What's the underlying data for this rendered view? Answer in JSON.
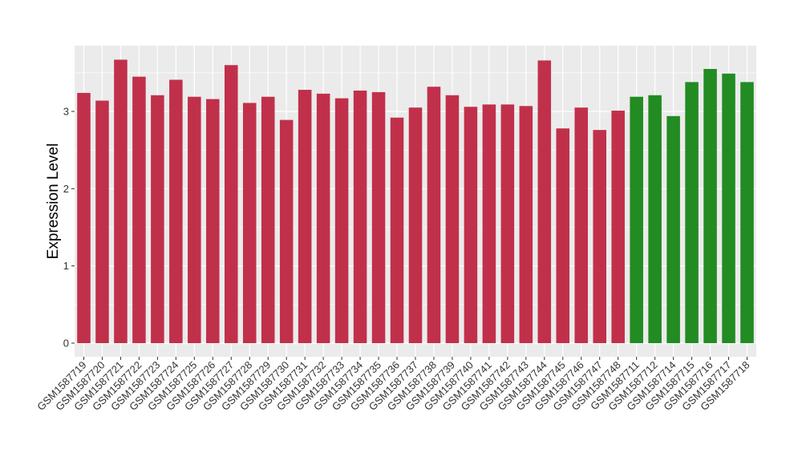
{
  "chart_data": {
    "type": "bar",
    "title": "",
    "xlabel": "",
    "ylabel": "Expression Level",
    "ylim": [
      0,
      3.8
    ],
    "yticks": [
      0,
      1,
      2,
      3
    ],
    "ytick_labels": [
      "0",
      "1",
      "2",
      "3"
    ],
    "grid": true,
    "categories": [
      "GSM1587719",
      "GSM1587720",
      "GSM1587721",
      "GSM1587722",
      "GSM1587723",
      "GSM1587724",
      "GSM1587725",
      "GSM1587726",
      "GSM1587727",
      "GSM1587728",
      "GSM1587729",
      "GSM1587730",
      "GSM1587731",
      "GSM1587732",
      "GSM1587733",
      "GSM1587734",
      "GSM1587735",
      "GSM1587736",
      "GSM1587737",
      "GSM1587738",
      "GSM1587739",
      "GSM1587740",
      "GSM1587741",
      "GSM1587742",
      "GSM1587743",
      "GSM1587744",
      "GSM1587745",
      "GSM1587746",
      "GSM1587747",
      "GSM1587748",
      "GSM1587711",
      "GSM1587712",
      "GSM1587714",
      "GSM1587715",
      "GSM1587716",
      "GSM1587717",
      "GSM1587718"
    ],
    "values": [
      3.24,
      3.14,
      3.67,
      3.45,
      3.21,
      3.41,
      3.19,
      3.16,
      3.6,
      3.11,
      3.19,
      2.89,
      3.28,
      3.23,
      3.17,
      3.27,
      3.25,
      2.92,
      3.05,
      3.32,
      3.21,
      3.06,
      3.09,
      3.09,
      3.07,
      3.66,
      2.78,
      3.05,
      2.76,
      3.01,
      3.19,
      3.21,
      2.94,
      3.38,
      3.55,
      3.49,
      3.38
    ],
    "groups": [
      "red",
      "red",
      "red",
      "red",
      "red",
      "red",
      "red",
      "red",
      "red",
      "red",
      "red",
      "red",
      "red",
      "red",
      "red",
      "red",
      "red",
      "red",
      "red",
      "red",
      "red",
      "red",
      "red",
      "red",
      "red",
      "red",
      "red",
      "red",
      "red",
      "red",
      "green",
      "green",
      "green",
      "green",
      "green",
      "green",
      "green"
    ],
    "colors": {
      "red": "#C1304A",
      "green": "#228B22"
    },
    "panel_background": "#EBEBEB",
    "gridline_color": "#FFFFFF"
  }
}
